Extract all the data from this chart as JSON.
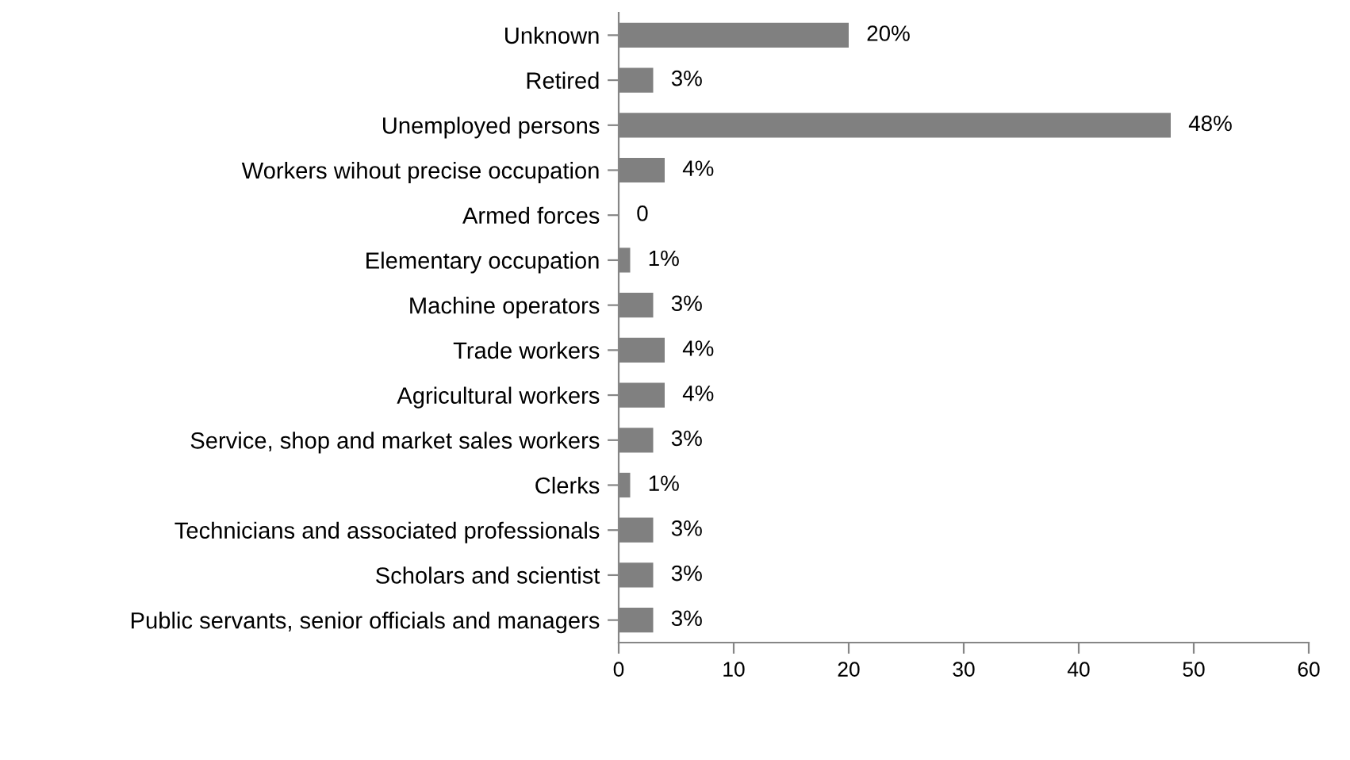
{
  "chart_data": {
    "type": "bar",
    "orientation": "horizontal",
    "categories": [
      "Unknown",
      "Retired",
      "Unemployed persons",
      "Workers wihout precise occupation",
      "Armed forces",
      "Elementary occupation",
      "Machine operators",
      "Trade workers",
      "Agricultural workers",
      "Service, shop and market sales workers",
      "Clerks",
      "Technicians and associated professionals",
      "Scholars and scientist",
      "Public servants, senior officials and managers"
    ],
    "values": [
      20,
      3,
      48,
      4,
      0,
      1,
      3,
      4,
      4,
      3,
      1,
      3,
      3,
      3
    ],
    "value_labels": [
      "20%",
      "3%",
      "48%",
      "4%",
      "0",
      "1%",
      "3%",
      "4%",
      "4%",
      "3%",
      "1%",
      "3%",
      "3%",
      "3%"
    ],
    "color": "#808080",
    "xlim": [
      0,
      60
    ],
    "xticks": [
      0,
      10,
      20,
      30,
      40,
      50,
      60
    ],
    "grid": false,
    "legend": false
  }
}
